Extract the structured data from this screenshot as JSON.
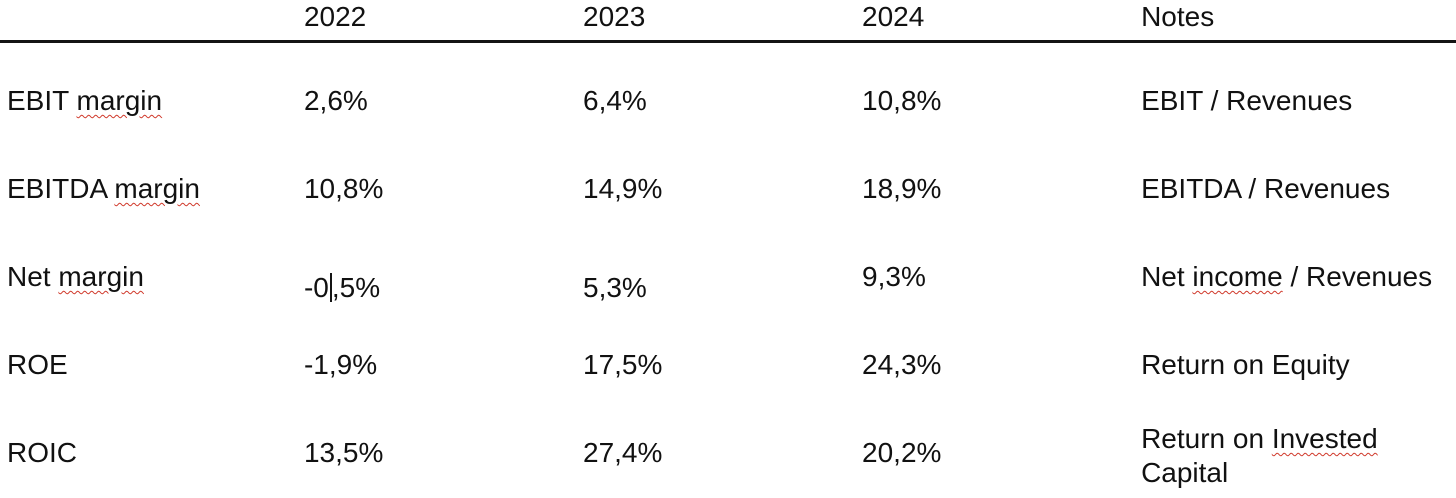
{
  "colors": {
    "text": "#111111",
    "header_rule": "#141414",
    "squiggle": "#d0382a",
    "caret": "#141414",
    "background": "#ffffff"
  },
  "table": {
    "header": {
      "cells": [
        "",
        "2022",
        "2023",
        "2024",
        "Notes"
      ]
    },
    "rows": [
      {
        "cells": [
          {
            "segments": [
              {
                "text": "EBIT "
              },
              {
                "text": "margin",
                "misspelled": true
              }
            ]
          },
          {
            "segments": [
              {
                "text": "2,6%"
              }
            ]
          },
          {
            "segments": [
              {
                "text": "6,4%"
              }
            ]
          },
          {
            "segments": [
              {
                "text": "10,8%"
              }
            ]
          },
          {
            "segments": [
              {
                "text": "EBIT / Revenues"
              }
            ]
          }
        ]
      },
      {
        "cells": [
          {
            "segments": [
              {
                "text": "EBITDA "
              },
              {
                "text": "margin",
                "misspelled": true
              }
            ]
          },
          {
            "segments": [
              {
                "text": "10,8%"
              }
            ]
          },
          {
            "segments": [
              {
                "text": "14,9%"
              }
            ]
          },
          {
            "segments": [
              {
                "text": "18,9%"
              }
            ]
          },
          {
            "segments": [
              {
                "text": "EBITDA / Revenues"
              }
            ]
          }
        ]
      },
      {
        "cells": [
          {
            "segments": [
              {
                "text": "Net "
              },
              {
                "text": "margin",
                "misspelled": true
              }
            ]
          },
          {
            "segments": [
              {
                "text": "-0"
              },
              {
                "caret": true
              },
              {
                "text": ",5%"
              }
            ],
            "variant": "lowered"
          },
          {
            "segments": [
              {
                "text": "5,3%"
              }
            ],
            "variant": "lowered"
          },
          {
            "segments": [
              {
                "text": "9,3%"
              }
            ]
          },
          {
            "segments": [
              {
                "text": "Net "
              },
              {
                "text": "income",
                "misspelled": true
              },
              {
                "text": " / Revenues"
              }
            ]
          }
        ]
      },
      {
        "cells": [
          {
            "segments": [
              {
                "text": "ROE"
              }
            ]
          },
          {
            "segments": [
              {
                "text": "-1,9%"
              }
            ]
          },
          {
            "segments": [
              {
                "text": "17,5%"
              }
            ]
          },
          {
            "segments": [
              {
                "text": "24,3%"
              }
            ]
          },
          {
            "segments": [
              {
                "text": "Return on Equity"
              }
            ]
          }
        ]
      },
      {
        "cells": [
          {
            "segments": [
              {
                "text": "ROIC"
              }
            ]
          },
          {
            "segments": [
              {
                "text": "13,5%"
              }
            ]
          },
          {
            "segments": [
              {
                "text": "27,4%"
              }
            ]
          },
          {
            "segments": [
              {
                "text": "20,2%"
              }
            ]
          },
          {
            "segments": [
              {
                "text": "Return on "
              },
              {
                "text": "Invested",
                "misspelled": true
              },
              {
                "text": " Capital"
              }
            ],
            "variant": "note-wrap"
          }
        ]
      }
    ]
  }
}
